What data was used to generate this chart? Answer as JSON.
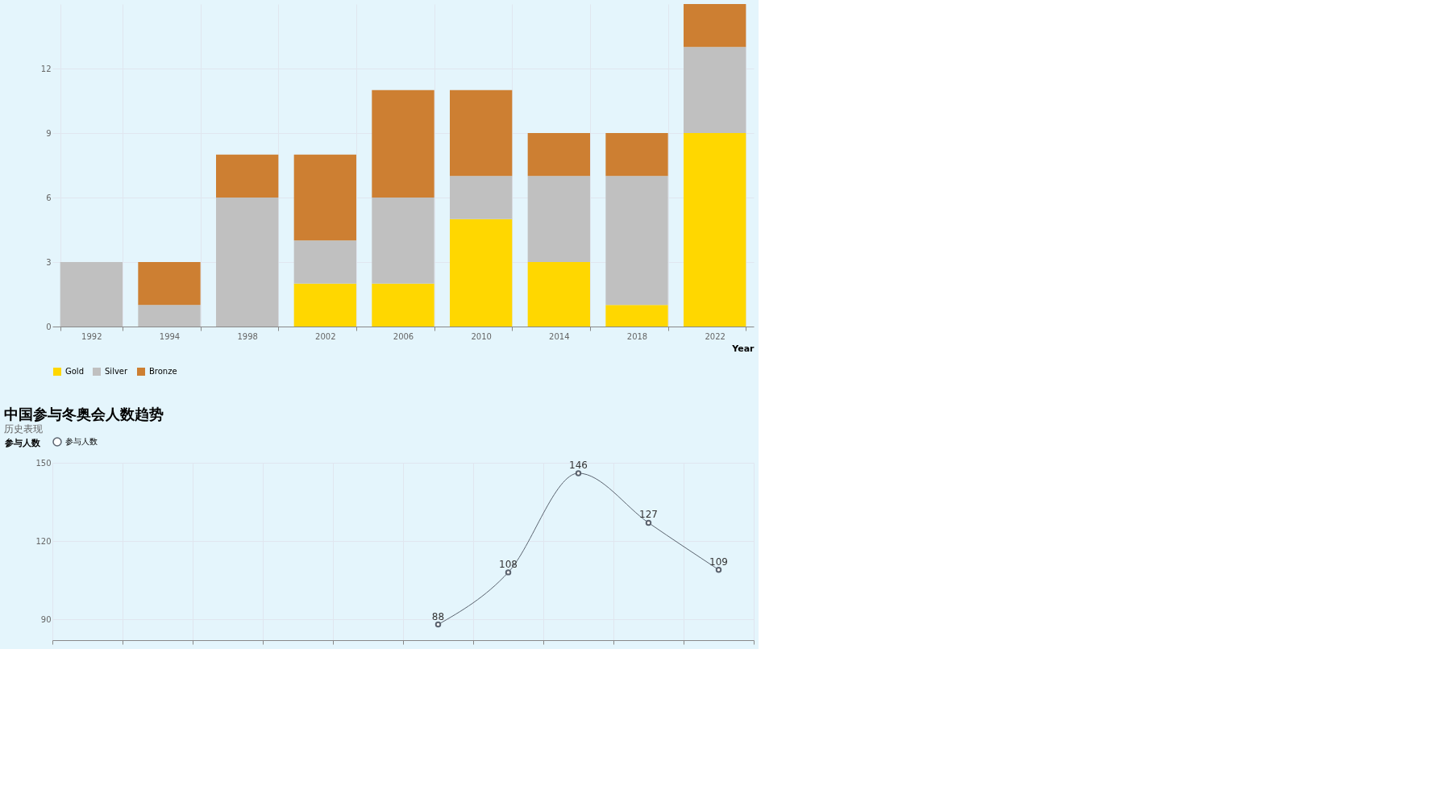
{
  "chart_data": [
    {
      "type": "bar",
      "stacked": true,
      "categories": [
        "1992",
        "1994",
        "1998",
        "2002",
        "2006",
        "2010",
        "2014",
        "2018",
        "2022"
      ],
      "xlabel": "Year",
      "series": [
        {
          "name": "Gold",
          "color": "#ffd700",
          "values": [
            0,
            0,
            0,
            2,
            2,
            5,
            3,
            1,
            9
          ]
        },
        {
          "name": "Silver",
          "color": "#c0c0c0",
          "values": [
            3,
            1,
            6,
            2,
            4,
            2,
            4,
            6,
            4
          ]
        },
        {
          "name": "Bronze",
          "color": "#cd7f32",
          "values": [
            0,
            2,
            2,
            4,
            5,
            4,
            2,
            2,
            2
          ]
        }
      ],
      "ylim": [
        0,
        15
      ],
      "yticks": [
        0,
        3,
        6,
        9,
        12
      ],
      "grid": true,
      "legend": "bottom"
    },
    {
      "type": "line",
      "title": "中国参与冬奥会人数趋势",
      "subtitle": "历史表现",
      "ylabel": "参与人数",
      "categories": [
        null,
        null,
        null,
        null,
        null,
        null,
        null,
        null,
        null,
        null
      ],
      "series": [
        {
          "name": "参与人数",
          "color": "#5b6470",
          "values": [
            null,
            null,
            null,
            null,
            null,
            88,
            108,
            146,
            127,
            109
          ]
        }
      ],
      "ylim": [
        82,
        150
      ],
      "yticks": [
        90,
        120,
        150
      ],
      "grid": true,
      "legend": "top",
      "marker": "circle",
      "data_labels": true,
      "tick_labels": "y"
    }
  ]
}
